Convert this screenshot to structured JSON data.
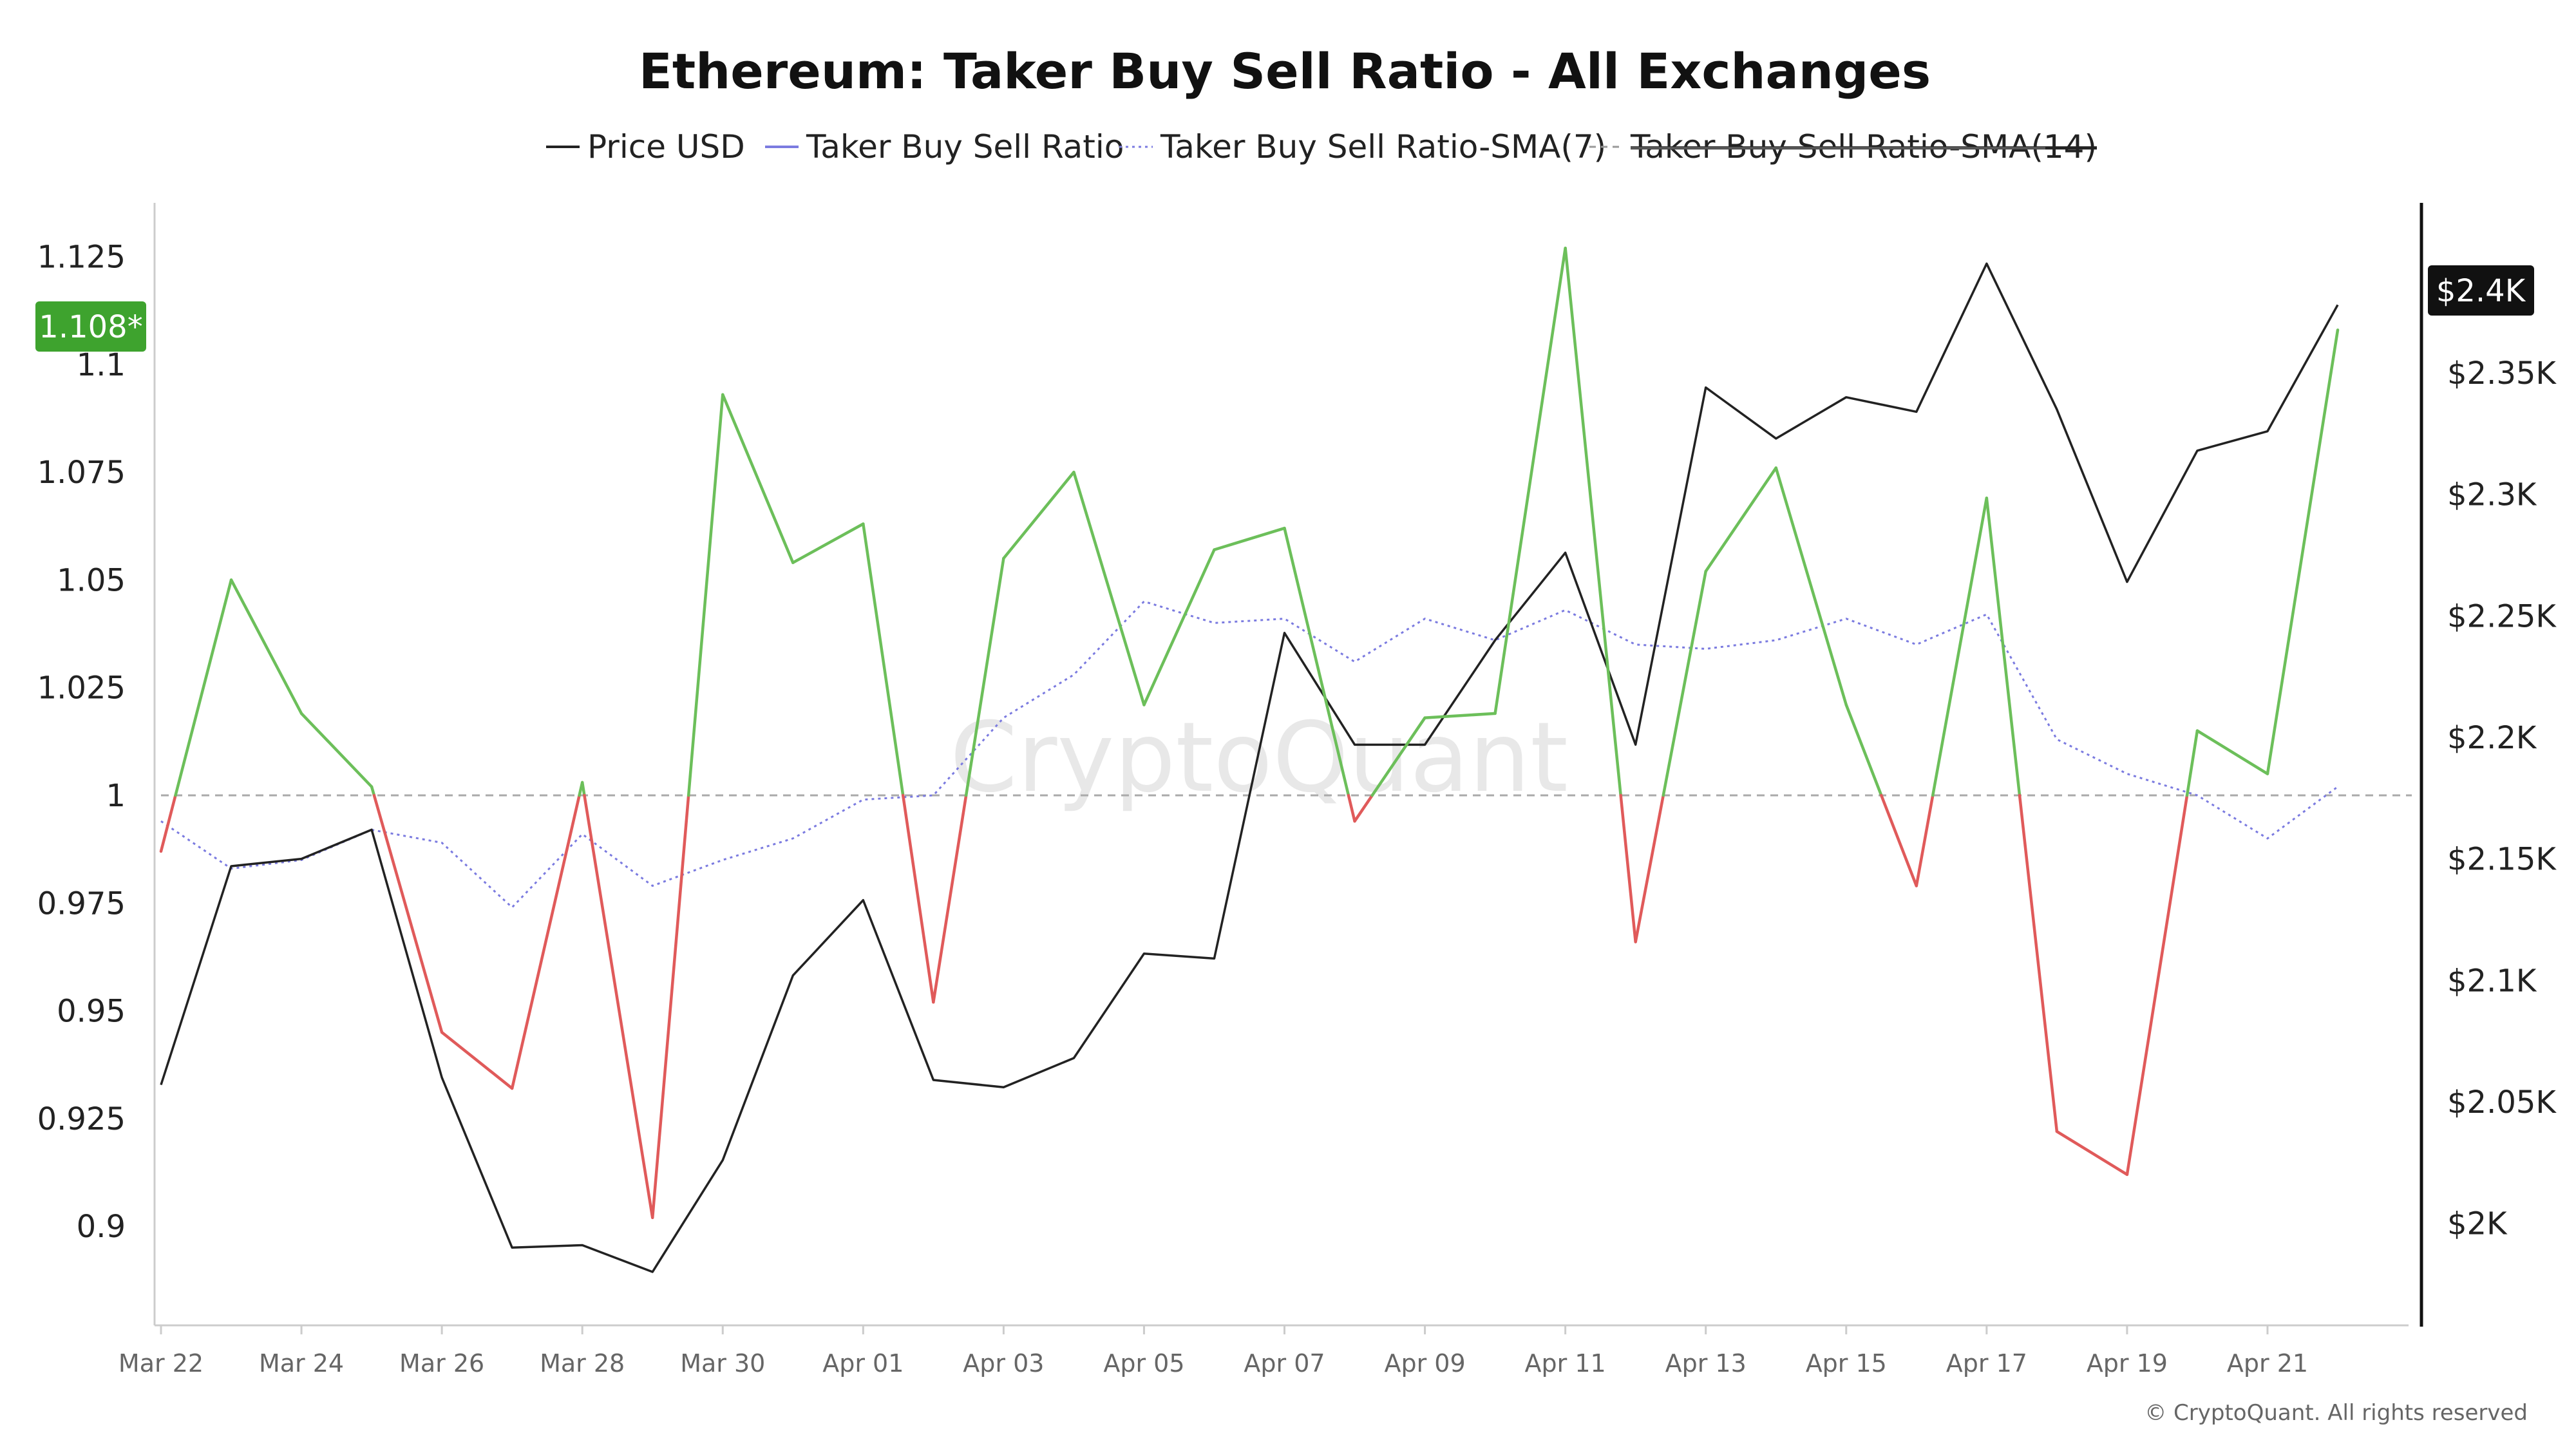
{
  "title": "Ethereum: Taker Buy Sell Ratio - All Exchanges",
  "legend": [
    {
      "label": "Price USD",
      "color": "#222222",
      "style": "solid",
      "disabled": false
    },
    {
      "label": "Taker Buy Sell Ratio",
      "color": "#7b7be0",
      "style": "solid",
      "disabled": false
    },
    {
      "label": "Taker Buy Sell Ratio-SMA(7)",
      "color": "#7b7be0",
      "style": "dotted",
      "disabled": false
    },
    {
      "label": "Taker Buy Sell Ratio-SMA(14)",
      "color": "#999999",
      "style": "dashed",
      "disabled": true
    }
  ],
  "watermark": "CryptoQuant",
  "copyright": "© CryptoQuant. All rights reserved",
  "badges": {
    "left": {
      "text": "1.108*",
      "color": "#3ea32e"
    },
    "right": {
      "text": "$2.4K",
      "color": "#111111"
    }
  },
  "colors": {
    "ratio_above": "#6cbf5a",
    "ratio_below": "#e05a5a",
    "price": "#222222",
    "sma7": "#7b7be0",
    "baseline": "#aaaaaa",
    "axis": "#cccccc",
    "right_axis": "#111111"
  },
  "chart_data": {
    "type": "line",
    "title": "Ethereum: Taker Buy Sell Ratio - All Exchanges",
    "x": [
      "Mar 22",
      "Mar 23",
      "Mar 24",
      "Mar 25",
      "Mar 26",
      "Mar 27",
      "Mar 28",
      "Mar 29",
      "Mar 30",
      "Mar 31",
      "Apr 01",
      "Apr 02",
      "Apr 03",
      "Apr 04",
      "Apr 05",
      "Apr 06",
      "Apr 07",
      "Apr 08",
      "Apr 09",
      "Apr 10",
      "Apr 11",
      "Apr 12",
      "Apr 13",
      "Apr 14",
      "Apr 15",
      "Apr 16",
      "Apr 17",
      "Apr 18",
      "Apr 19",
      "Apr 20",
      "Apr 21",
      "Apr 22"
    ],
    "x_tick_labels": [
      "Mar 22",
      "Mar 24",
      "Mar 26",
      "Mar 28",
      "Mar 30",
      "Apr 01",
      "Apr 03",
      "Apr 05",
      "Apr 07",
      "Apr 09",
      "Apr 11",
      "Apr 13",
      "Apr 15",
      "Apr 17",
      "Apr 19",
      "Apr 21"
    ],
    "left_axis": {
      "ticks": [
        "0.9",
        "0.925",
        "0.95",
        "0.975",
        "1",
        "1.025",
        "1.05",
        "1.075",
        "1.1",
        "1.125"
      ],
      "tick_values": [
        0.9,
        0.925,
        0.95,
        0.975,
        1.0,
        1.025,
        1.05,
        1.075,
        1.1,
        1.125
      ],
      "range": [
        0.877,
        1.1375
      ],
      "baseline": 1.0
    },
    "right_axis": {
      "ticks": [
        "$2K",
        "$2.05K",
        "$2.1K",
        "$2.15K",
        "$2.2K",
        "$2.25K",
        "$2.3K",
        "$2.35K"
      ],
      "tick_values": [
        2000,
        2050,
        2100,
        2150,
        2200,
        2250,
        2300,
        2350
      ],
      "range": [
        1958,
        2420
      ]
    },
    "series": [
      {
        "name": "Taker Buy Sell Ratio",
        "axis": "left",
        "values": [
          0.987,
          1.05,
          1.019,
          1.002,
          0.945,
          0.932,
          1.003,
          0.902,
          1.093,
          1.054,
          1.063,
          0.952,
          1.055,
          1.075,
          1.021,
          1.057,
          1.062,
          0.994,
          1.018,
          1.019,
          1.127,
          0.966,
          1.052,
          1.076,
          1.021,
          0.979,
          1.069,
          0.922,
          0.912,
          1.015,
          1.005,
          1.108
        ]
      },
      {
        "name": "Taker Buy Sell Ratio-SMA(7)",
        "axis": "left",
        "values": [
          0.994,
          0.983,
          0.985,
          0.992,
          0.989,
          0.974,
          0.991,
          0.979,
          0.985,
          0.99,
          0.999,
          1.0,
          1.018,
          1.028,
          1.045,
          1.04,
          1.041,
          1.031,
          1.041,
          1.036,
          1.043,
          1.035,
          1.034,
          1.036,
          1.041,
          1.035,
          1.042,
          1.013,
          1.005,
          1.0,
          0.99,
          1.002
        ]
      },
      {
        "name": "Price USD",
        "axis": "right",
        "values": [
          2057,
          2147,
          2150,
          2162,
          2060,
          1990,
          1991,
          1980,
          2026,
          2102,
          2133,
          2059,
          2056,
          2068,
          2111,
          2109,
          2243,
          2197,
          2197,
          2240,
          2276,
          2197,
          2344,
          2323,
          2340,
          2334,
          2395,
          2335,
          2264,
          2318,
          2326,
          2378
        ]
      }
    ]
  }
}
